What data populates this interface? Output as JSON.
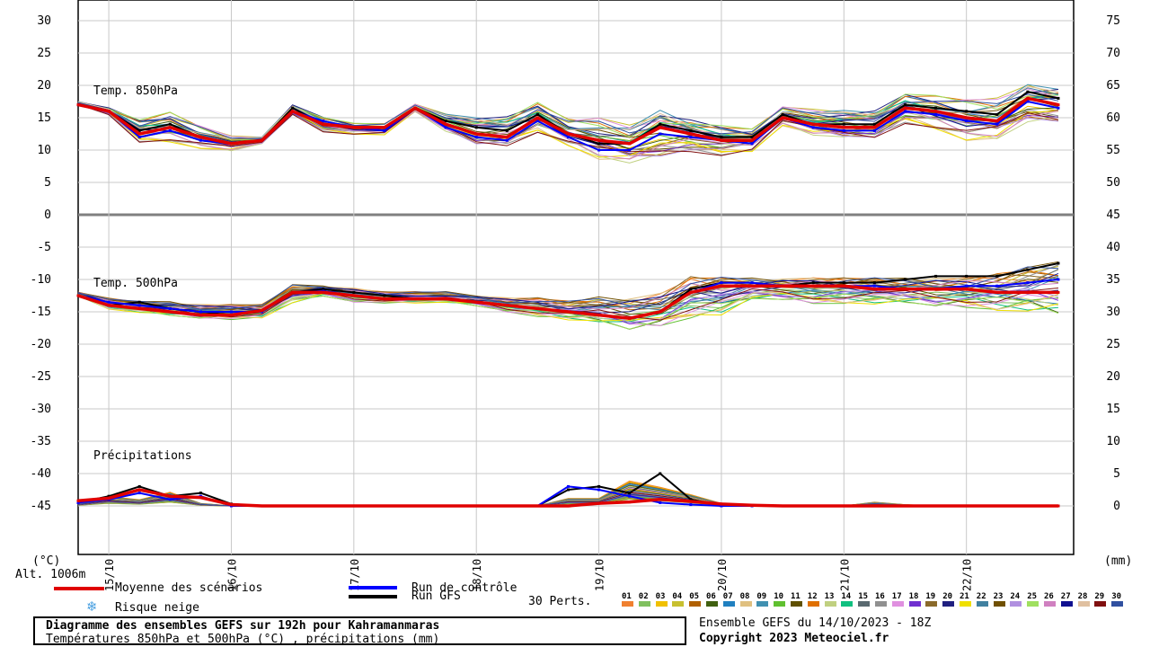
{
  "chart_data": {
    "type": "line",
    "title": "Diagramme des ensembles GEFS sur 192h pour Kahramanmaras",
    "subtitle": "Températures 850hPa et 500hPa (°C) , précipitations (mm)",
    "left_axis": {
      "label": "(°C)",
      "ticks": [
        "30",
        "25",
        "20",
        "15",
        "10",
        "5",
        "0",
        "-5",
        "-10",
        "-15",
        "-20",
        "-25",
        "-30",
        "-35",
        "-40",
        "-45"
      ],
      "range": [
        -56,
        30
      ]
    },
    "right_axis": {
      "label": "(mm)",
      "ticks": [
        "75",
        "70",
        "65",
        "60",
        "55",
        "50",
        "45",
        "40",
        "35",
        "30",
        "25",
        "20",
        "15",
        "10",
        "5",
        "0"
      ],
      "range": [
        -11,
        75
      ]
    },
    "x_axis": {
      "unit": "hours",
      "range": [
        0,
        195
      ],
      "dates": [
        "15/10",
        "16/10",
        "17/10",
        "18/10",
        "19/10",
        "20/10",
        "21/10",
        "22/10"
      ],
      "date_hours": [
        6,
        30,
        54,
        78,
        102,
        126,
        150,
        174
      ]
    },
    "altitude_label": "Alt. 1006m",
    "panel_labels": {
      "t850": "Temp. 850hPa",
      "t500": "Temp. 500hPa",
      "precip": "Précipitations"
    },
    "series": [
      {
        "name": "Moyenne des scénarios",
        "color": "#e00000",
        "x": [
          0,
          6,
          12,
          18,
          24,
          30,
          36,
          42,
          48,
          54,
          60,
          66,
          72,
          78,
          84,
          90,
          96,
          102,
          108,
          114,
          120,
          126,
          132,
          138,
          144,
          150,
          156,
          162,
          168,
          174,
          180,
          186,
          192
        ],
        "t850": [
          17,
          16,
          12.5,
          13.5,
          12,
          11,
          11.5,
          16,
          14,
          13.5,
          13.5,
          16.5,
          14,
          12.5,
          12,
          15,
          12.5,
          11.5,
          11,
          13.5,
          12.5,
          11.5,
          11.5,
          15,
          14,
          13.5,
          13.5,
          16.5,
          16,
          15,
          14.5,
          18,
          17
        ],
        "t500": [
          -12.5,
          -14,
          -14.5,
          -15,
          -15.5,
          -15.5,
          -14.8,
          -12,
          -12,
          -12.5,
          -13,
          -13,
          -13,
          -13.5,
          -14,
          -14.5,
          -15,
          -15.5,
          -16,
          -15,
          -12,
          -11,
          -11,
          -11,
          -11,
          -11,
          -11.5,
          -11.5,
          -11.5,
          -11.5,
          -12,
          -12,
          -12
        ],
        "precip": [
          0.8,
          1.2,
          2.5,
          1.5,
          1.3,
          0.2,
          0,
          0,
          0,
          0,
          0,
          0,
          0,
          0,
          0,
          0,
          0,
          0.4,
          0.6,
          1,
          0.7,
          0.3,
          0.1,
          0,
          0,
          0,
          0,
          0,
          0,
          0,
          0,
          0,
          0
        ]
      },
      {
        "name": "Run de contrôle",
        "color": "#0000ff",
        "x": [
          0,
          6,
          12,
          18,
          24,
          30,
          36,
          42,
          48,
          54,
          60,
          66,
          72,
          78,
          84,
          90,
          96,
          102,
          108,
          114,
          120,
          126,
          132,
          138,
          144,
          150,
          156,
          162,
          168,
          174,
          180,
          186,
          192
        ],
        "t850": [
          17,
          16,
          12,
          13,
          11.5,
          11,
          11.5,
          16,
          14.5,
          13.5,
          13,
          16.5,
          13.5,
          12,
          11.5,
          14.5,
          12,
          10,
          10,
          12.5,
          12,
          11.5,
          11,
          15,
          13.5,
          13,
          13,
          16,
          15.5,
          14.5,
          14,
          17.5,
          16.5
        ],
        "t500": [
          -12.5,
          -13.5,
          -14,
          -14.5,
          -15,
          -15,
          -15,
          -12,
          -11.8,
          -12.5,
          -13,
          -13,
          -13,
          -13.5,
          -14,
          -14.5,
          -15,
          -15.5,
          -16,
          -15,
          -12,
          -10.5,
          -10.5,
          -11,
          -11,
          -11,
          -11,
          -11.5,
          -11.5,
          -11,
          -11,
          -10.5,
          -10
        ],
        "precip": [
          0.5,
          1,
          2,
          1,
          1.5,
          0,
          0,
          0,
          0,
          0,
          0,
          0,
          0,
          0,
          0,
          0,
          3,
          2.5,
          1.5,
          0.5,
          0.2,
          0,
          0,
          0,
          0,
          0,
          0,
          0,
          0,
          0,
          0,
          0,
          0
        ]
      },
      {
        "name": "Run GFS",
        "color": "#000000",
        "x": [
          0,
          6,
          12,
          18,
          24,
          30,
          36,
          42,
          48,
          54,
          60,
          66,
          72,
          78,
          84,
          90,
          96,
          102,
          108,
          114,
          120,
          126,
          132,
          138,
          144,
          150,
          156,
          162,
          168,
          174,
          180,
          186,
          192
        ],
        "t850": [
          17,
          16,
          13,
          14,
          12,
          11,
          11.5,
          16.5,
          14,
          13.5,
          13,
          16.5,
          14.5,
          13.5,
          13,
          15.5,
          12.5,
          11,
          11,
          14,
          13,
          12,
          12,
          15.5,
          14,
          14,
          14,
          17,
          16.5,
          16,
          15.5,
          19,
          18
        ],
        "t500": [
          -12.5,
          -14,
          -13.5,
          -14.5,
          -15,
          -15.5,
          -15,
          -12,
          -11.5,
          -12,
          -12.5,
          -13,
          -13,
          -13.5,
          -14,
          -14.5,
          -15,
          -15.5,
          -16,
          -15,
          -11.5,
          -10.5,
          -10.5,
          -11,
          -10.5,
          -10.5,
          -10.5,
          -10,
          -9.5,
          -9.5,
          -9.5,
          -8.5,
          -7.5
        ],
        "precip": [
          0.5,
          1.5,
          3,
          1.5,
          2,
          0.3,
          0,
          0,
          0,
          0,
          0,
          0,
          0,
          0,
          0,
          0,
          2.5,
          3,
          2,
          5,
          1,
          0,
          0,
          0,
          0,
          0,
          0,
          0,
          0,
          0,
          0,
          0,
          0
        ]
      }
    ],
    "perturbation_envelope": {
      "t850_min": [
        17,
        15.5,
        11.5,
        11.5,
        10.5,
        10,
        11,
        15.5,
        13,
        12.5,
        12.5,
        16,
        13,
        11,
        11,
        13,
        11,
        9,
        8.3,
        9,
        10,
        9.5,
        10,
        14,
        12.5,
        12,
        12,
        14.5,
        13.5,
        12,
        12,
        14.5,
        14.5
      ],
      "t850_max": [
        17.5,
        16.5,
        14.5,
        15.5,
        13.5,
        12,
        12,
        17,
        15,
        14,
        14,
        17,
        15.5,
        15,
        15,
        17,
        14.5,
        14.5,
        13.5,
        16,
        14.5,
        13.5,
        13,
        16.5,
        16,
        16,
        16,
        18.5,
        18,
        17.5,
        17.5,
        20,
        19.5
      ],
      "t500_min": [
        -12.5,
        -14.5,
        -15,
        -15.5,
        -16,
        -16,
        -15.8,
        -13.5,
        -12.5,
        -13.5,
        -13.5,
        -13.5,
        -13.5,
        -14,
        -15,
        -15.5,
        -16,
        -16.5,
        -17.5,
        -17,
        -15.5,
        -15,
        -13,
        -13,
        -13.5,
        -13.5,
        -13.5,
        -13.5,
        -14,
        -14,
        -14.5,
        -14.5,
        -15
      ],
      "t500_max": [
        -12,
        -13,
        -13.5,
        -13.5,
        -14,
        -14,
        -14,
        -11,
        -11,
        -11.5,
        -12,
        -12,
        -12,
        -12.5,
        -13,
        -13,
        -13.5,
        -13,
        -13,
        -12.5,
        -10,
        -10,
        -10,
        -10,
        -10,
        -10,
        -10,
        -10,
        -10,
        -10,
        -9.5,
        -8.5,
        -7.5
      ],
      "precip_max": [
        1,
        3.8,
        2.5,
        5.5,
        1,
        0,
        0,
        0,
        0,
        0,
        0,
        0,
        0,
        0,
        0,
        0,
        3,
        3,
        10,
        7.5,
        4.5,
        1,
        0,
        0,
        0,
        0,
        1.5,
        0.5,
        0,
        0,
        0,
        0,
        0
      ]
    },
    "pert_count_label": "30 Perts.",
    "perturbations": [
      {
        "name": "01",
        "color": "#f08030"
      },
      {
        "name": "02",
        "color": "#80c060"
      },
      {
        "name": "03",
        "color": "#f0c000"
      },
      {
        "name": "04",
        "color": "#c8c030"
      },
      {
        "name": "05",
        "color": "#b06000"
      },
      {
        "name": "06",
        "color": "#406010"
      },
      {
        "name": "07",
        "color": "#2080c0"
      },
      {
        "name": "08",
        "color": "#e0c080"
      },
      {
        "name": "09",
        "color": "#4090b0"
      },
      {
        "name": "10",
        "color": "#60c030"
      },
      {
        "name": "11",
        "color": "#605000"
      },
      {
        "name": "12",
        "color": "#e07000"
      },
      {
        "name": "13",
        "color": "#c0d080"
      },
      {
        "name": "14",
        "color": "#10c080"
      },
      {
        "name": "15",
        "color": "#5a6a70"
      },
      {
        "name": "16",
        "color": "#909090"
      },
      {
        "name": "17",
        "color": "#e090e0"
      },
      {
        "name": "18",
        "color": "#7030d0"
      },
      {
        "name": "19",
        "color": "#8a6a2a"
      },
      {
        "name": "20",
        "color": "#202080"
      },
      {
        "name": "21",
        "color": "#f0e000"
      },
      {
        "name": "22",
        "color": "#4080a0"
      },
      {
        "name": "23",
        "color": "#705000"
      },
      {
        "name": "24",
        "color": "#b090e0"
      },
      {
        "name": "25",
        "color": "#a0e060"
      },
      {
        "name": "26",
        "color": "#d080c0"
      },
      {
        "name": "27",
        "color": "#101090"
      },
      {
        "name": "28",
        "color": "#e0c0a0"
      },
      {
        "name": "29",
        "color": "#801010"
      },
      {
        "name": "30",
        "color": "#3050a0"
      }
    ]
  },
  "legend": {
    "mean_label": "Moyenne des scénarios",
    "control_label": "Run de contrôle",
    "gfs_label": "Run GFS",
    "snow_label": "Risque neige"
  },
  "footer": {
    "title": "Diagramme des ensembles GEFS sur 192h pour Kahramanmaras",
    "subtitle": "Températures 850hPa et 500hPa (°C) , précipitations (mm)",
    "run_info": "Ensemble GEFS du 14/10/2023 - 18Z",
    "copyright": "Copyright 2023 Meteociel.fr"
  }
}
